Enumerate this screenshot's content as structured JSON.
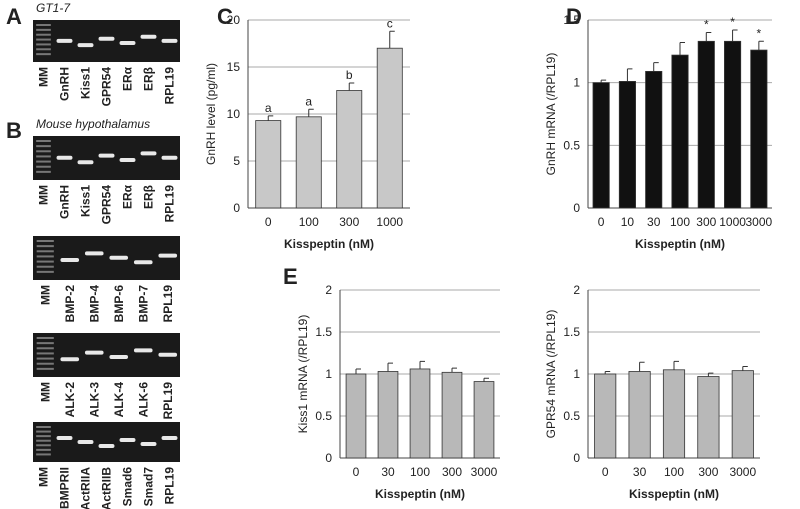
{
  "gels": [
    {
      "panel": "A",
      "title": "GT1-7",
      "blots": [
        [
          "MM",
          "GnRH",
          "Kiss1",
          "GPR54",
          "ERα",
          "ERβ",
          "RPL19"
        ]
      ]
    },
    {
      "panel": "B",
      "title": "Mouse hypothalamus",
      "blots": [
        [
          "MM",
          "GnRH",
          "Kiss1",
          "GPR54",
          "ERα",
          "ERβ",
          "RPL19"
        ],
        [
          "MM",
          "BMP-2",
          "BMP-4",
          "BMP-6",
          "BMP-7",
          "RPL19"
        ],
        [
          "MM",
          "ALK-2",
          "ALK-3",
          "ALK-4",
          "ALK-6",
          "RPL19"
        ],
        [
          "MM",
          "BMPRII",
          "ActRIIA",
          "ActRIIB",
          "Smad6",
          "Smad7",
          "RPL19"
        ]
      ]
    }
  ],
  "chart_data": [
    {
      "type": "bar",
      "panel": "C",
      "ylabel": "GnRH  level (pg/ml)",
      "xlabel": "Kisspeptin (nM)",
      "categories": [
        "0",
        "100",
        "300",
        "1000"
      ],
      "values": [
        9.3,
        9.7,
        12.5,
        17
      ],
      "errors": [
        0.5,
        0.8,
        0.8,
        1.8
      ],
      "annotations": [
        "a",
        "a",
        "b",
        "c"
      ],
      "color": "#c8c8c8",
      "ylim": [
        0,
        20
      ],
      "yticks": [
        0,
        5,
        10,
        15,
        20
      ],
      "grid": true
    },
    {
      "type": "bar",
      "panel": "D",
      "ylabel": "GnRH mRNA (/RPL19)",
      "xlabel": "Kisspeptin (nM)",
      "categories": [
        "0",
        "10",
        "30",
        "100",
        "300",
        "1000",
        "3000"
      ],
      "values": [
        1.0,
        1.01,
        1.09,
        1.22,
        1.33,
        1.33,
        1.26
      ],
      "errors": [
        0.02,
        0.1,
        0.07,
        0.1,
        0.07,
        0.09,
        0.07
      ],
      "annotations": [
        null,
        null,
        null,
        null,
        "*",
        "*",
        "*"
      ],
      "color": "#111111",
      "ylim": [
        0,
        1.5
      ],
      "yticks": [
        0,
        0.5,
        1,
        1.5
      ],
      "grid": true
    },
    {
      "type": "bar",
      "panel": "E",
      "ylabel": "Kiss1 mRNA (/RPL19)",
      "xlabel": "Kisspeptin (nM)",
      "categories": [
        "0",
        "30",
        "100",
        "300",
        "3000"
      ],
      "values": [
        1.0,
        1.03,
        1.06,
        1.02,
        0.91
      ],
      "errors": [
        0.06,
        0.1,
        0.09,
        0.05,
        0.04
      ],
      "color": "#b8b8b8",
      "ylim": [
        0,
        2
      ],
      "yticks": [
        0,
        0.5,
        1,
        1.5,
        2
      ],
      "grid": true
    },
    {
      "type": "bar",
      "ylabel": "GPR54 mRNA (/RPL19)",
      "xlabel": "Kisspeptin (nM)",
      "categories": [
        "0",
        "30",
        "100",
        "300",
        "3000"
      ],
      "values": [
        1.0,
        1.03,
        1.05,
        0.97,
        1.04
      ],
      "errors": [
        0.03,
        0.11,
        0.1,
        0.04,
        0.05
      ],
      "color": "#b8b8b8",
      "ylim": [
        0,
        2
      ],
      "yticks": [
        0,
        0.5,
        1,
        1.5,
        2
      ],
      "grid": true
    }
  ]
}
